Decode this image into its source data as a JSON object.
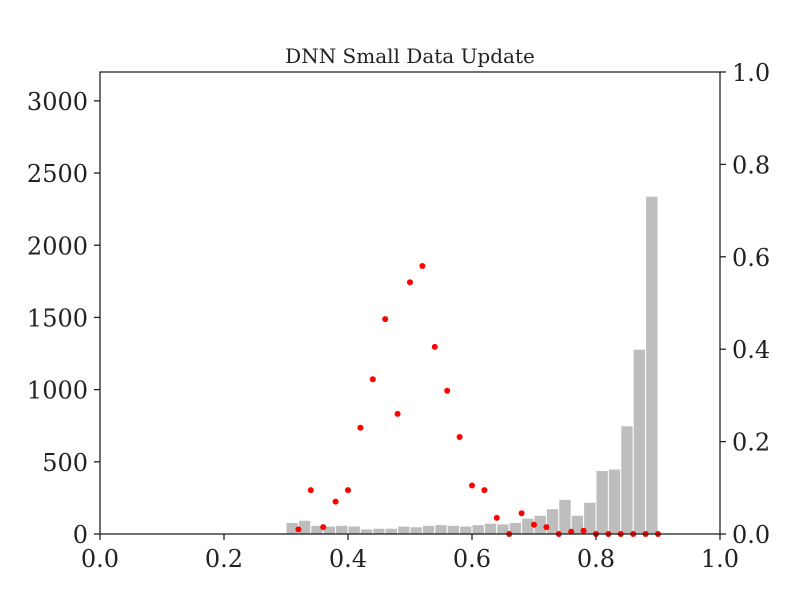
{
  "chart_data": {
    "type": "bar",
    "title": "DNN Small Data Update",
    "xlabel": "",
    "ylabel": "",
    "xlim": [
      0.0,
      1.0
    ],
    "ylim_left": [
      0,
      3200
    ],
    "ylim_right": [
      0.0,
      1.0
    ],
    "x_ticks": [
      "0.0",
      "0.2",
      "0.4",
      "0.6",
      "0.8",
      "1.0"
    ],
    "y_left_ticks": [
      "0",
      "500",
      "1000",
      "1500",
      "2000",
      "2500",
      "3000"
    ],
    "y_right_ticks": [
      "0.0",
      "0.2",
      "0.4",
      "0.6",
      "0.8",
      "1.0"
    ],
    "grid": false,
    "legend": "none",
    "bar_color": "#bdbdbd",
    "point_color": "#ff0000",
    "series": [
      {
        "kind": "histogram",
        "axis": "left",
        "bin_width": 0.02,
        "bins": [
          {
            "x": 0.31,
            "value": 80
          },
          {
            "x": 0.33,
            "value": 95
          },
          {
            "x": 0.35,
            "value": 60
          },
          {
            "x": 0.37,
            "value": 55
          },
          {
            "x": 0.39,
            "value": 60
          },
          {
            "x": 0.41,
            "value": 55
          },
          {
            "x": 0.43,
            "value": 35
          },
          {
            "x": 0.45,
            "value": 40
          },
          {
            "x": 0.47,
            "value": 40
          },
          {
            "x": 0.49,
            "value": 55
          },
          {
            "x": 0.51,
            "value": 50
          },
          {
            "x": 0.53,
            "value": 60
          },
          {
            "x": 0.55,
            "value": 65
          },
          {
            "x": 0.57,
            "value": 60
          },
          {
            "x": 0.59,
            "value": 55
          },
          {
            "x": 0.61,
            "value": 65
          },
          {
            "x": 0.63,
            "value": 75
          },
          {
            "x": 0.65,
            "value": 70
          },
          {
            "x": 0.67,
            "value": 80
          },
          {
            "x": 0.69,
            "value": 110
          },
          {
            "x": 0.71,
            "value": 130
          },
          {
            "x": 0.73,
            "value": 175
          },
          {
            "x": 0.75,
            "value": 240
          },
          {
            "x": 0.77,
            "value": 130
          },
          {
            "x": 0.79,
            "value": 220
          },
          {
            "x": 0.81,
            "value": 440
          },
          {
            "x": 0.83,
            "value": 450
          },
          {
            "x": 0.85,
            "value": 750
          },
          {
            "x": 0.87,
            "value": 1280
          },
          {
            "x": 0.89,
            "value": 2340
          }
        ]
      },
      {
        "kind": "scatter",
        "axis": "right",
        "points": [
          {
            "x": 0.32,
            "y": 0.01
          },
          {
            "x": 0.34,
            "y": 0.095
          },
          {
            "x": 0.36,
            "y": 0.015
          },
          {
            "x": 0.38,
            "y": 0.07
          },
          {
            "x": 0.4,
            "y": 0.095
          },
          {
            "x": 0.42,
            "y": 0.23
          },
          {
            "x": 0.44,
            "y": 0.335
          },
          {
            "x": 0.46,
            "y": 0.465
          },
          {
            "x": 0.48,
            "y": 0.26
          },
          {
            "x": 0.5,
            "y": 0.545
          },
          {
            "x": 0.52,
            "y": 0.58
          },
          {
            "x": 0.54,
            "y": 0.405
          },
          {
            "x": 0.56,
            "y": 0.31
          },
          {
            "x": 0.58,
            "y": 0.21
          },
          {
            "x": 0.6,
            "y": 0.105
          },
          {
            "x": 0.62,
            "y": 0.095
          },
          {
            "x": 0.64,
            "y": 0.035
          },
          {
            "x": 0.66,
            "y": 0.0
          },
          {
            "x": 0.68,
            "y": 0.045
          },
          {
            "x": 0.7,
            "y": 0.02
          },
          {
            "x": 0.72,
            "y": 0.015
          },
          {
            "x": 0.74,
            "y": 0.0
          },
          {
            "x": 0.76,
            "y": 0.005
          },
          {
            "x": 0.78,
            "y": 0.007
          },
          {
            "x": 0.8,
            "y": 0.0
          },
          {
            "x": 0.82,
            "y": 0.0
          },
          {
            "x": 0.84,
            "y": 0.0
          },
          {
            "x": 0.86,
            "y": 0.0
          },
          {
            "x": 0.88,
            "y": 0.0
          },
          {
            "x": 0.9,
            "y": 0.0
          }
        ]
      }
    ]
  }
}
